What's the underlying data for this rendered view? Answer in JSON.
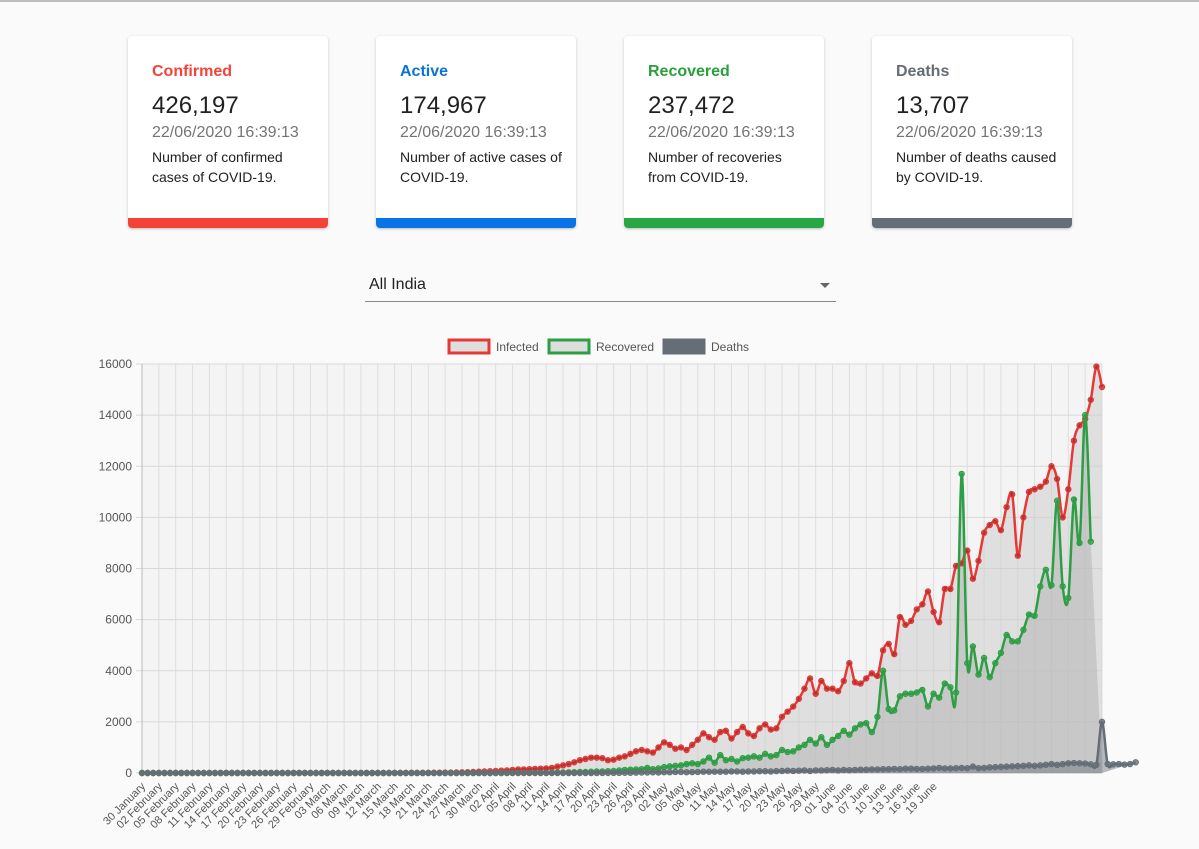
{
  "colors": {
    "confirmed": "#f44336",
    "active": "#1976d2",
    "recovered": "#2e9e44",
    "deaths": "#656d76"
  },
  "cards": [
    {
      "title": "Confirmed",
      "value": "426,197",
      "timestamp": "22/06/2020 16:39:13",
      "description": "Number of confirmed cases of COVID-19.",
      "color": "#f44336",
      "bar": "#f44336"
    },
    {
      "title": "Active",
      "value": "174,967",
      "timestamp": "22/06/2020 16:39:13",
      "description": "Number of active cases of COVID-19.",
      "color": "#0a73d9",
      "bar": "#0a73e8"
    },
    {
      "title": "Recovered",
      "value": "237,472",
      "timestamp": "22/06/2020 16:39:13",
      "description": "Number of recoveries from COVID-19.",
      "color": "#28a138",
      "bar": "#28a745"
    },
    {
      "title": "Deaths",
      "value": "13,707",
      "timestamp": "22/06/2020 16:39:13",
      "description": "Number of deaths caused by COVID-19.",
      "color": "#656d76",
      "bar": "#656d76"
    }
  ],
  "region_select": {
    "value": "All India"
  },
  "chart_data": {
    "type": "line",
    "legend_position": "top",
    "grid": true,
    "ylim": [
      0,
      16000
    ],
    "yticks": [
      0,
      2000,
      4000,
      6000,
      8000,
      10000,
      12000,
      14000,
      16000
    ],
    "x_start": "30 January",
    "x_tick_labels": [
      "30 January",
      "02 February",
      "05 February",
      "08 February",
      "11 February",
      "14 February",
      "17 February",
      "20 February",
      "23 February",
      "26 February",
      "29 February",
      "03 March",
      "06 March",
      "09 March",
      "12 March",
      "15 March",
      "18 March",
      "21 March",
      "24 March",
      "27 March",
      "30 March",
      "02 April",
      "05 April",
      "08 April",
      "11 April",
      "14 April",
      "17 April",
      "20 April",
      "23 April",
      "26 April",
      "29 April",
      "02 May",
      "05 May",
      "08 May",
      "11 May",
      "14 May",
      "17 May",
      "20 May",
      "23 May",
      "26 May",
      "29 May",
      "01 June",
      "04 June",
      "07 June",
      "10 June",
      "13 June",
      "16 June",
      "19 June"
    ],
    "series": [
      {
        "name": "Infected",
        "color": "#e53935",
        "fill": "rgba(205,205,205,0.55)",
        "values": [
          0,
          0,
          0,
          0,
          0,
          0,
          0,
          0,
          0,
          0,
          0,
          0,
          0,
          0,
          0,
          0,
          0,
          0,
          0,
          0,
          0,
          0,
          0,
          0,
          0,
          0,
          0,
          0,
          0,
          0,
          0,
          0,
          0,
          0,
          0,
          0,
          0,
          0,
          0,
          0,
          0,
          0,
          0,
          0,
          0,
          0,
          2,
          3,
          5,
          6,
          6,
          8,
          10,
          12,
          15,
          16,
          20,
          25,
          30,
          40,
          50,
          60,
          70,
          80,
          90,
          100,
          120,
          140,
          140,
          150,
          160,
          170,
          180,
          200,
          250,
          300,
          350,
          420,
          500,
          550,
          600,
          600,
          580,
          500,
          520,
          600,
          650,
          750,
          850,
          900,
          850,
          800,
          1000,
          1200,
          1100,
          950,
          1000,
          900,
          1100,
          1300,
          1550,
          1400,
          1300,
          1600,
          1650,
          1350,
          1600,
          1800,
          1550,
          1450,
          1750,
          1900,
          1700,
          1750,
          2200,
          2400,
          2600,
          2900,
          3300,
          3700,
          3100,
          3600,
          3300,
          3300,
          3200,
          3600,
          4300,
          3550,
          3500,
          3700,
          3900,
          3800,
          4800,
          5050,
          4650,
          6100,
          5800,
          5950,
          6400,
          6600,
          7100,
          6300,
          5900,
          7200,
          7200,
          8100,
          8200,
          8700,
          7600,
          8300,
          9400,
          9700,
          9850,
          9500,
          10400,
          10900,
          8500,
          10000,
          11000,
          11100,
          11200,
          11400,
          12000,
          11500,
          10000,
          11100,
          13000,
          13600,
          13850,
          14600,
          15900,
          15100
        ]
      },
      {
        "name": "Recovered",
        "color": "#2e9e44",
        "fill": "rgba(180,180,180,0.55)",
        "values": [
          0,
          0,
          0,
          0,
          0,
          0,
          0,
          0,
          0,
          0,
          0,
          0,
          0,
          0,
          0,
          0,
          0,
          0,
          0,
          0,
          0,
          0,
          0,
          0,
          0,
          0,
          0,
          0,
          0,
          0,
          0,
          0,
          0,
          0,
          0,
          0,
          0,
          0,
          0,
          0,
          0,
          0,
          0,
          0,
          0,
          0,
          0,
          0,
          0,
          0,
          0,
          0,
          0,
          0,
          0,
          0,
          0,
          0,
          0,
          0,
          0,
          0,
          0,
          0,
          0,
          2,
          3,
          5,
          5,
          5,
          8,
          10,
          10,
          15,
          20,
          20,
          25,
          30,
          40,
          40,
          50,
          60,
          60,
          70,
          80,
          100,
          120,
          130,
          140,
          150,
          200,
          150,
          180,
          230,
          260,
          280,
          300,
          350,
          380,
          350,
          450,
          600,
          400,
          700,
          500,
          550,
          450,
          580,
          600,
          650,
          600,
          750,
          650,
          700,
          900,
          820,
          850,
          1000,
          1100,
          1300,
          1150,
          1400,
          1100,
          1300,
          1450,
          1650,
          1500,
          1750,
          1900,
          1950,
          1600,
          2200,
          4000,
          2500,
          2450,
          3000,
          3100,
          3100,
          3150,
          3250,
          2600,
          3100,
          2950,
          3500,
          3350,
          3150,
          11700,
          4300,
          4950,
          3850,
          4500,
          3750,
          4300,
          4700,
          5400,
          5150,
          5150,
          5600,
          6200,
          6150,
          7300,
          7950,
          7350,
          10650,
          7300,
          6850,
          10700,
          9000,
          14000,
          9050
        ]
      },
      {
        "name": "Deaths",
        "color": "#656d76",
        "fill": "rgba(100,108,118,0.45)",
        "values": [
          0,
          0,
          0,
          0,
          0,
          0,
          0,
          0,
          0,
          0,
          0,
          0,
          0,
          0,
          0,
          0,
          0,
          0,
          0,
          0,
          0,
          0,
          0,
          0,
          0,
          0,
          0,
          0,
          0,
          0,
          0,
          0,
          0,
          0,
          0,
          0,
          0,
          0,
          0,
          0,
          0,
          0,
          0,
          0,
          0,
          0,
          0,
          0,
          0,
          0,
          0,
          0,
          0,
          0,
          0,
          0,
          0,
          0,
          0,
          0,
          0,
          0,
          0,
          0,
          0,
          0,
          0,
          0,
          0,
          0,
          0,
          0,
          0,
          0,
          0,
          0,
          0,
          0,
          0,
          0,
          0,
          0,
          2,
          3,
          5,
          5,
          10,
          10,
          15,
          20,
          20,
          25,
          20,
          30,
          30,
          40,
          40,
          30,
          35,
          40,
          50,
          50,
          50,
          50,
          50,
          60,
          60,
          50,
          60,
          60,
          70,
          70,
          60,
          75,
          80,
          90,
          80,
          90,
          100,
          80,
          100,
          100,
          110,
          120,
          100,
          120,
          110,
          120,
          130,
          130,
          140,
          140,
          150,
          150,
          160,
          150,
          170,
          170,
          160,
          160,
          170,
          180,
          200,
          180,
          180,
          190,
          200,
          190,
          250,
          190,
          200,
          220,
          230,
          240,
          250,
          260,
          270,
          280,
          300,
          280,
          300,
          320,
          350,
          320,
          350,
          380,
          390,
          380,
          370,
          340,
          320,
          2000,
          350,
          340,
          350,
          330,
          350,
          420
        ]
      }
    ]
  }
}
